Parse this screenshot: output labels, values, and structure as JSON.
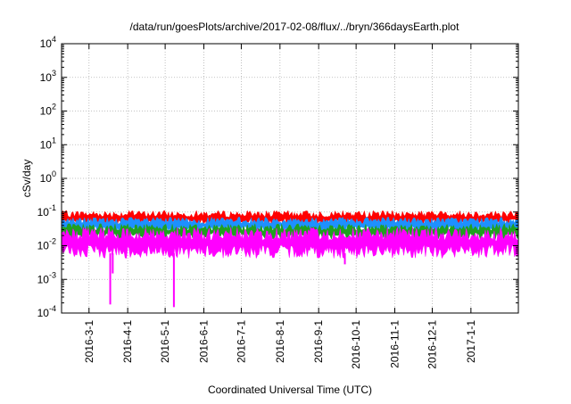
{
  "chart_data": {
    "type": "line",
    "title": "/data/run/goesPlots/archive/2017-02-08/flux/../bryn/366daysEarth.plot",
    "xlabel": "Coordinated Universal Time (UTC)",
    "ylabel": "cSv/day",
    "yscale": "log",
    "ylim": [
      0.0001,
      10000
    ],
    "xlim": [
      "2016-02-08",
      "2017-02-08"
    ],
    "grid": true,
    "y_ticks": [
      {
        "value": 0.0001,
        "base": "10",
        "exp": "-4"
      },
      {
        "value": 0.001,
        "base": "10",
        "exp": "-3"
      },
      {
        "value": 0.01,
        "base": "10",
        "exp": "-2"
      },
      {
        "value": 0.1,
        "base": "10",
        "exp": "-1"
      },
      {
        "value": 1,
        "base": "10",
        "exp": "0"
      },
      {
        "value": 10,
        "base": "10",
        "exp": "1"
      },
      {
        "value": 100,
        "base": "10",
        "exp": "2"
      },
      {
        "value": 1000,
        "base": "10",
        "exp": "3"
      },
      {
        "value": 10000,
        "base": "10",
        "exp": "4"
      }
    ],
    "x_ticks": [
      {
        "date": "2016-03-01",
        "label": "2016-3-1"
      },
      {
        "date": "2016-04-01",
        "label": "2016-4-1"
      },
      {
        "date": "2016-05-01",
        "label": "2016-5-1"
      },
      {
        "date": "2016-06-01",
        "label": "2016-6-1"
      },
      {
        "date": "2016-07-01",
        "label": "2016-7-1"
      },
      {
        "date": "2016-08-01",
        "label": "2016-8-1"
      },
      {
        "date": "2016-09-01",
        "label": "2016-9-1"
      },
      {
        "date": "2016-10-01",
        "label": "2016-10-1"
      },
      {
        "date": "2016-11-01",
        "label": "2016-11-1"
      },
      {
        "date": "2016-12-01",
        "label": "2016-12-1"
      },
      {
        "date": "2017-01-01",
        "label": "2017-1-1"
      }
    ],
    "series": [
      {
        "color": "#ff0000",
        "low": 0.04,
        "high": 0.11
      },
      {
        "color": "#1e90ff",
        "low": 0.025,
        "high": 0.07
      },
      {
        "color": "#20a020",
        "low": 0.015,
        "high": 0.045
      },
      {
        "color": "#ff00ff",
        "low": 0.0042,
        "high": 0.035
      }
    ],
    "dips": [
      {
        "date": "2016-03-18",
        "value": 0.00018
      },
      {
        "date": "2016-03-20",
        "value": 0.0015
      },
      {
        "date": "2016-05-08",
        "value": 0.00015
      },
      {
        "date": "2016-09-22",
        "value": 0.0028
      }
    ]
  }
}
